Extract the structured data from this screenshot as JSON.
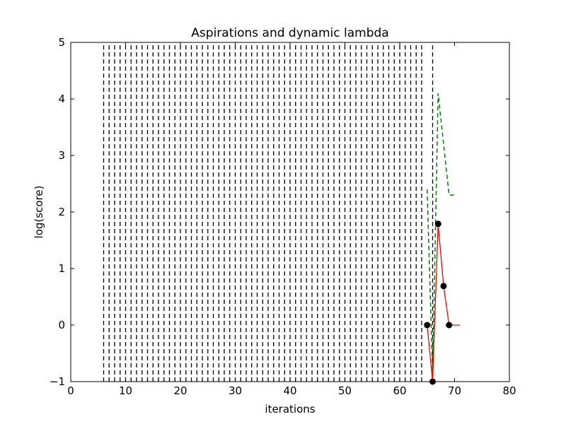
{
  "chart_data": {
    "type": "line",
    "title": "Aspirations and dynamic lambda",
    "xlabel": "iterations",
    "ylabel": "log(score)",
    "xlim": [
      0,
      80
    ],
    "ylim": [
      -1,
      5
    ],
    "xticks": [
      0,
      10,
      20,
      30,
      40,
      50,
      60,
      70,
      80
    ],
    "yticks": [
      -1,
      0,
      1,
      2,
      3,
      4,
      5
    ],
    "grid": false,
    "legend": "none",
    "series": [
      {
        "style": "solid-with-markers",
        "color": "#ff0000",
        "marker_color": "#000000",
        "x": [
          65,
          66,
          67,
          68,
          69,
          70,
          71
        ],
        "y": [
          0,
          -1,
          1.79,
          0.69,
          0,
          0,
          0
        ],
        "markers_at_x": [
          65,
          66,
          67,
          68,
          69
        ]
      },
      {
        "style": "dashed",
        "color": "#008000",
        "x": [
          65,
          66,
          67,
          68,
          69,
          70
        ],
        "y": [
          2.4,
          -0.9,
          4.1,
          3.2,
          2.3,
          2.3
        ]
      },
      {
        "style": "dashed-vertical-lines",
        "color": "#000000",
        "x": [
          6,
          7,
          8,
          9,
          10,
          11,
          12,
          13,
          14,
          15,
          16,
          17,
          18,
          19,
          20,
          21,
          22,
          23,
          24,
          25,
          26,
          27,
          28,
          29,
          30,
          31,
          32,
          33,
          34,
          35,
          36,
          37,
          38,
          39,
          40,
          41,
          42,
          43,
          44,
          45,
          46,
          47,
          48,
          49,
          50,
          51,
          52,
          53,
          54,
          55,
          56,
          57,
          58,
          59,
          60,
          61,
          62,
          63,
          64,
          66
        ],
        "y_range": [
          -1,
          5
        ]
      }
    ]
  }
}
